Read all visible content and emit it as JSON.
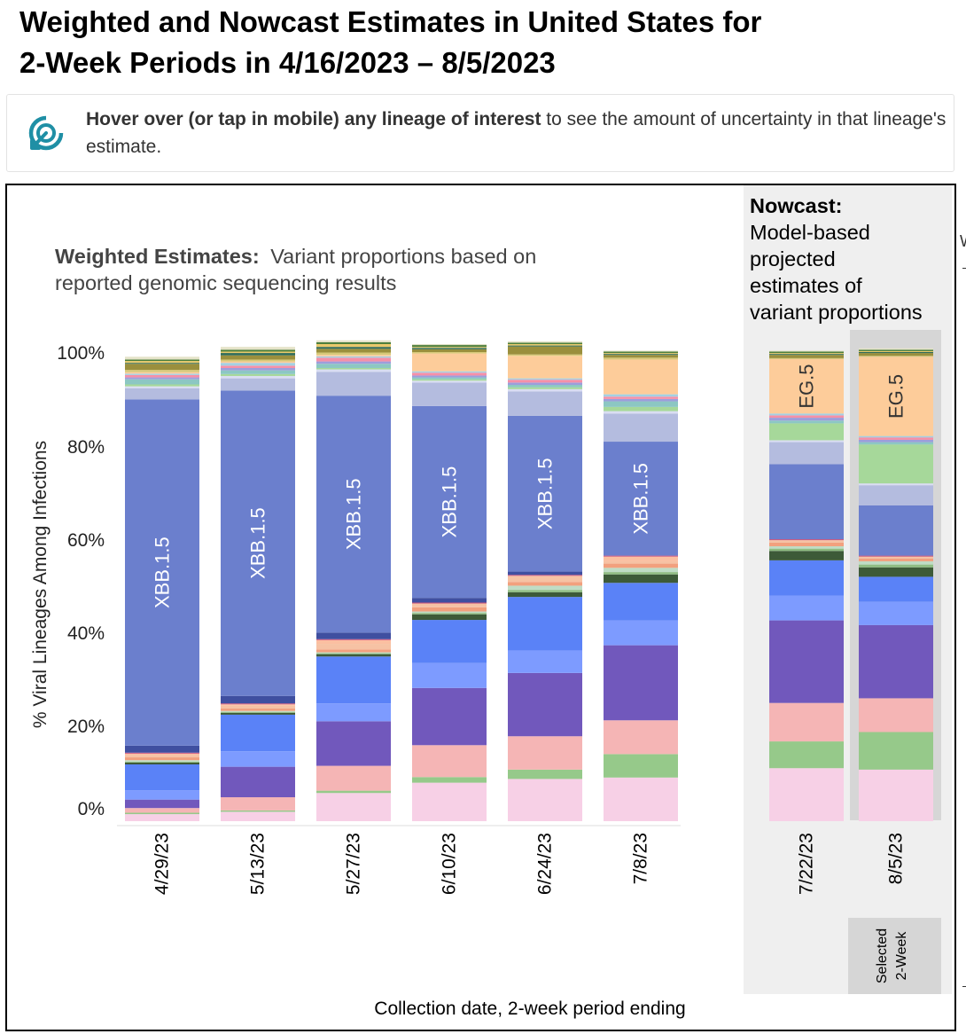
{
  "page": {
    "title_line1": "Weighted and Nowcast Estimates in United States for",
    "title_line2": "2-Week Periods in 4/16/2023 – 8/5/2023"
  },
  "hint": {
    "bold": "Hover over (or tap in mobile) any lineage of interest",
    "rest": "to see the amount of uncertainty in that lineage's estimate.",
    "icon": "touch-target-icon",
    "icon_color": "#1f8fa5"
  },
  "weighted_panel": {
    "heading_bold": "Weighted Estimates:",
    "heading_rest_line1": "Variant proportions based on",
    "heading_rest_line2": "reported genomic sequencing results"
  },
  "nowcast_panel": {
    "heading_bold": "Nowcast:",
    "lines": [
      "Model-based",
      "projected",
      "estimates of",
      "variant proportions"
    ]
  },
  "selected_label": {
    "line1": "Selected",
    "line2": "2-Week"
  },
  "edge_mark": "W",
  "colors": {
    "nowcast_bg": "#efefef",
    "selected_bg": "#d6d6d6",
    "bar_label": "#ffffff",
    "eg5_label": "#333333"
  },
  "chart_data": {
    "type": "bar",
    "stacked": true,
    "ylabel": "% Viral Lineages Among Infections",
    "xlabel": "Collection date, 2-week period ending",
    "ylim": [
      0,
      100
    ],
    "yticks": [
      "0%",
      "20%",
      "40%",
      "60%",
      "80%",
      "100%"
    ],
    "grid": false,
    "legend": "none",
    "categories": [
      "4/29/23",
      "5/13/23",
      "5/27/23",
      "6/10/23",
      "6/24/23",
      "7/8/23",
      "7/22/23",
      "8/5/23"
    ],
    "nowcast_categories": [
      "7/22/23",
      "8/5/23"
    ],
    "selected_category": "8/5/23",
    "bar_labels": [
      {
        "category": "4/29/23",
        "series": "s22",
        "text": "XBB.1.5"
      },
      {
        "category": "5/13/23",
        "series": "s22",
        "text": "XBB.1.5"
      },
      {
        "category": "5/27/23",
        "series": "s22",
        "text": "XBB.1.5"
      },
      {
        "category": "6/10/23",
        "series": "s22",
        "text": "XBB.1.5"
      },
      {
        "category": "6/24/23",
        "series": "s22",
        "text": "XBB.1.5"
      },
      {
        "category": "7/8/23",
        "series": "s22",
        "text": "XBB.1.5"
      },
      {
        "category": "7/22/23",
        "series": "s30",
        "text": "EG.5"
      },
      {
        "category": "8/5/23",
        "series": "s30",
        "text": "EG.5"
      }
    ],
    "series": [
      {
        "id": "s1",
        "color": "#f7d0e6",
        "values": [
          1.5,
          2.0,
          6.0,
          8.2,
          9.0,
          9.3,
          11.3,
          11.0
        ]
      },
      {
        "id": "s2",
        "color": "#96c98a",
        "values": [
          0.3,
          0.3,
          0.5,
          1.2,
          2.0,
          5.0,
          5.7,
          8.0
        ]
      },
      {
        "id": "s3",
        "color": "#f5b5b5",
        "values": [
          1.0,
          2.8,
          5.3,
          6.8,
          7.1,
          7.2,
          8.2,
          7.2
        ]
      },
      {
        "id": "s4",
        "color": "#7158bc",
        "values": [
          1.8,
          6.5,
          9.5,
          12.2,
          13.5,
          16.0,
          17.6,
          15.6
        ]
      },
      {
        "id": "s5",
        "color": "#7d9bff",
        "values": [
          2.0,
          3.3,
          3.8,
          5.3,
          4.8,
          5.3,
          5.3,
          5.0
        ]
      },
      {
        "id": "s6",
        "color": "#5a82f7",
        "values": [
          5.5,
          7.8,
          10.0,
          9.2,
          11.4,
          8.0,
          7.5,
          5.3
        ]
      },
      {
        "id": "s7",
        "color": "#3d5a38",
        "values": [
          0.4,
          0.4,
          0.5,
          1.2,
          1.0,
          1.8,
          2.0,
          2.0
        ]
      },
      {
        "id": "s8",
        "color": "#8fbc82",
        "values": [
          0.2,
          0.2,
          0.2,
          0.3,
          0.5,
          0.5,
          0.5,
          0.6
        ]
      },
      {
        "id": "s9",
        "color": "#bfdcc5",
        "values": [
          0.3,
          0.2,
          0.2,
          0.3,
          0.9,
          0.9,
          0.5,
          0.7
        ]
      },
      {
        "id": "s10",
        "color": "#f2a07e",
        "values": [
          0.6,
          0.5,
          0.6,
          0.9,
          0.8,
          0.9,
          0.8,
          0.6
        ]
      },
      {
        "id": "s11",
        "color": "#f6c2a4",
        "values": [
          0.5,
          0.6,
          1.2,
          0.8,
          1.3,
          0.5,
          0.5,
          0.4
        ]
      },
      {
        "id": "s12",
        "color": "#fbbfa1",
        "values": [
          0.3,
          0.3,
          0.8,
          0.0,
          0.0,
          1.0,
          0.0,
          0.0
        ]
      },
      {
        "id": "s20",
        "color": "#c9507a",
        "values": [
          0.2,
          0.2,
          0.2,
          0.2,
          0.2,
          0.2,
          0.2,
          0.2
        ]
      },
      {
        "id": "s21",
        "color": "#3f4fa0",
        "values": [
          1.5,
          1.6,
          1.4,
          1.0,
          0.7,
          0.0,
          0.0,
          0.0
        ]
      },
      {
        "id": "s22",
        "color": "#6b7fcd",
        "values": [
          73.8,
          65.1,
          50.5,
          40.9,
          33.2,
          24.3,
          16.0,
          10.7
        ]
      },
      {
        "id": "s23",
        "color": "#b4bcdf",
        "values": [
          2.4,
          2.6,
          5.1,
          5.0,
          5.2,
          6.0,
          4.7,
          4.3
        ]
      },
      {
        "id": "s24",
        "color": "#d9ddf2",
        "values": [
          0.4,
          0.5,
          0.5,
          0.4,
          0.5,
          0.5,
          0.4,
          0.4
        ]
      },
      {
        "id": "s25",
        "color": "#a6d89a",
        "values": [
          0.4,
          0.4,
          0.3,
          0.3,
          0.4,
          0.9,
          3.6,
          8.3
        ]
      },
      {
        "id": "s26",
        "color": "#8cc7c3",
        "values": [
          1.1,
          0.8,
          0.9,
          0.4,
          0.5,
          1.2,
          0.6,
          0.5
        ]
      },
      {
        "id": "s27",
        "color": "#9d9edb",
        "values": [
          0.4,
          0.5,
          0.5,
          0.4,
          0.5,
          0.5,
          0.6,
          0.5
        ]
      },
      {
        "id": "s28",
        "color": "#f590a8",
        "values": [
          0.5,
          0.5,
          0.8,
          0.6,
          0.6,
          0.5,
          0.5,
          0.5
        ]
      },
      {
        "id": "s29",
        "color": "#a4d0e3",
        "values": [
          0.3,
          0.6,
          0.3,
          0.3,
          0.3,
          0.5,
          0.4,
          0.3
        ]
      },
      {
        "id": "s30",
        "color": "#fdcc9a",
        "values": [
          0.3,
          0.3,
          0.3,
          3.8,
          4.8,
          7.4,
          11.6,
          16.9
        ]
      },
      {
        "id": "s31",
        "color": "#d7c979",
        "values": [
          0.5,
          0.4,
          0.5,
          0.3,
          0.3,
          0.4,
          0.2,
          0.2
        ]
      },
      {
        "id": "s32",
        "color": "#9a8f3d",
        "values": [
          1.3,
          0.9,
          0.8,
          0.6,
          1.7,
          0.6,
          0.7,
          0.6
        ]
      },
      {
        "id": "s33",
        "color": "#2f6b5a",
        "values": [
          0.2,
          0.5,
          0.4,
          0.3,
          0.2,
          0.2,
          0.2,
          0.2
        ]
      },
      {
        "id": "s34",
        "color": "#e9c96b",
        "values": [
          0.4,
          0.3,
          0.6,
          0.2,
          0.3,
          0.2,
          0.2,
          0.2
        ]
      },
      {
        "id": "s35",
        "color": "#4d7f3c",
        "values": [
          0.3,
          0.4,
          0.4,
          0.4,
          0.3,
          0.3,
          0.3,
          0.3
        ]
      },
      {
        "id": "s36",
        "color": "#e5e3c9",
        "values": [
          0.6,
          0.6,
          0.4,
          0.2,
          0.3,
          0.2,
          0.2,
          0.3
        ]
      }
    ]
  }
}
